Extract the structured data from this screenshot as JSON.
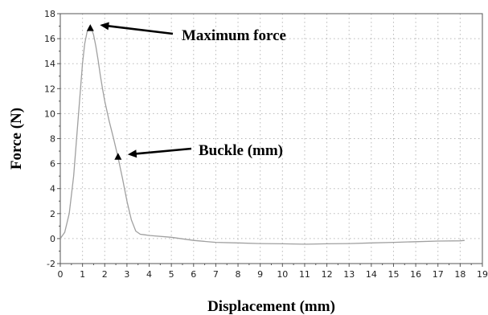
{
  "chart_data": {
    "type": "line",
    "xlabel": "Displacement (mm)",
    "ylabel": "Force (N)",
    "xlim": [
      0,
      19
    ],
    "ylim": [
      -2,
      18
    ],
    "xticks": [
      0,
      1,
      2,
      3,
      4,
      5,
      6,
      7,
      8,
      9,
      10,
      11,
      12,
      13,
      14,
      15,
      16,
      17,
      18,
      19
    ],
    "yticks": [
      -2,
      0,
      2,
      4,
      6,
      8,
      10,
      12,
      14,
      16,
      18
    ],
    "grid": true,
    "line_color": "#a0a0a0",
    "series": [
      {
        "x": [
          0.0,
          0.2,
          0.4,
          0.6,
          0.8,
          1.0,
          1.1,
          1.2,
          1.3,
          1.4,
          1.5,
          1.6,
          1.7,
          1.8,
          1.9,
          2.0,
          2.2,
          2.4,
          2.6,
          2.8,
          3.0,
          3.2,
          3.4,
          3.6,
          3.8,
          4.0,
          5.0,
          6.0,
          7.0,
          8.0,
          9.0,
          10.0,
          11.0,
          12.0,
          13.0,
          14.0,
          15.0,
          16.0,
          17.0,
          18.0,
          18.2
        ],
        "y": [
          0.0,
          0.5,
          2.0,
          5.0,
          9.5,
          14.0,
          15.6,
          16.5,
          16.9,
          16.8,
          16.3,
          15.4,
          14.3,
          13.1,
          12.0,
          11.0,
          9.4,
          8.0,
          6.5,
          4.8,
          3.0,
          1.5,
          0.6,
          0.35,
          0.3,
          0.25,
          0.1,
          -0.15,
          -0.3,
          -0.35,
          -0.4,
          -0.42,
          -0.45,
          -0.42,
          -0.4,
          -0.35,
          -0.3,
          -0.25,
          -0.2,
          -0.18,
          -0.15
        ]
      }
    ],
    "markers": [
      {
        "x": 1.35,
        "y": 16.9
      },
      {
        "x": 2.6,
        "y": 6.6
      }
    ],
    "annotations": [
      {
        "text": "Maximum force",
        "x": 1.35,
        "y": 16.9
      },
      {
        "text": "Buckle (mm)",
        "x": 2.6,
        "y": 6.6
      }
    ]
  }
}
